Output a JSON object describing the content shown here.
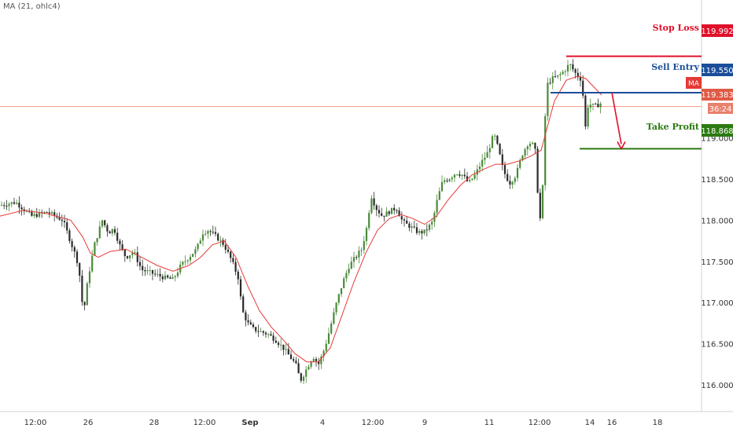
{
  "indicator": {
    "label": "MA (21, ohlc4)"
  },
  "price_tags": {
    "stop_loss": "119.992",
    "sell_entry": "119.550",
    "current": "119.383",
    "countdown": "36:24",
    "take_profit": "118.868",
    "ma_tag": "MA"
  },
  "colors": {
    "stop_loss": "#e0102a",
    "sell_entry": "#1a4e9a",
    "take_profit": "#2b7a12",
    "ma_line": "#e53935",
    "candle_up": "#4a8a3a",
    "candle_down": "#2a2a2a",
    "current_line": "#f4a58a"
  },
  "chart_data": {
    "type": "candlestick",
    "symbol_indicator": "MA (21, ohlc4)",
    "y_axis": {
      "range": [
        115.78,
        120.05
      ],
      "ticks": [
        "116.000",
        "116.500",
        "117.000",
        "117.500",
        "118.000",
        "118.500",
        "119.000"
      ]
    },
    "x_axis": {
      "ticks": [
        "12:00",
        "26",
        "28",
        "12:00",
        "Sep",
        "4",
        "12:00",
        "9",
        "11",
        "12:00",
        "14",
        "16",
        "18"
      ],
      "bold_ticks": [
        "Sep"
      ]
    },
    "price_path": [
      [
        0,
        118.18
      ],
      [
        20,
        118.22
      ],
      [
        40,
        118.05
      ],
      [
        60,
        118.1
      ],
      [
        80,
        118.0
      ],
      [
        95,
        117.6
      ],
      [
        100,
        117.45
      ],
      [
        106,
        116.85
      ],
      [
        112,
        117.3
      ],
      [
        120,
        117.7
      ],
      [
        130,
        118.0
      ],
      [
        138,
        117.85
      ],
      [
        145,
        117.9
      ],
      [
        152,
        117.7
      ],
      [
        160,
        117.55
      ],
      [
        170,
        117.62
      ],
      [
        180,
        117.4
      ],
      [
        195,
        117.35
      ],
      [
        210,
        117.3
      ],
      [
        220,
        117.28
      ],
      [
        230,
        117.45
      ],
      [
        240,
        117.55
      ],
      [
        250,
        117.65
      ],
      [
        258,
        117.85
      ],
      [
        265,
        117.88
      ],
      [
        275,
        117.8
      ],
      [
        285,
        117.7
      ],
      [
        295,
        117.5
      ],
      [
        303,
        117.3
      ],
      [
        308,
        116.9
      ],
      [
        315,
        116.75
      ],
      [
        322,
        116.68
      ],
      [
        330,
        116.65
      ],
      [
        340,
        116.62
      ],
      [
        350,
        116.55
      ],
      [
        360,
        116.45
      ],
      [
        368,
        116.35
      ],
      [
        376,
        116.25
      ],
      [
        382,
        116.05
      ],
      [
        390,
        116.2
      ],
      [
        398,
        116.35
      ],
      [
        405,
        116.25
      ],
      [
        413,
        116.45
      ],
      [
        420,
        116.7
      ],
      [
        428,
        117.0
      ],
      [
        436,
        117.25
      ],
      [
        444,
        117.45
      ],
      [
        452,
        117.55
      ],
      [
        460,
        117.65
      ],
      [
        466,
        117.9
      ],
      [
        472,
        118.3
      ],
      [
        478,
        118.15
      ],
      [
        486,
        118.05
      ],
      [
        494,
        118.1
      ],
      [
        504,
        118.15
      ],
      [
        512,
        117.98
      ],
      [
        522,
        117.92
      ],
      [
        532,
        117.85
      ],
      [
        540,
        117.86
      ],
      [
        550,
        117.98
      ],
      [
        556,
        118.25
      ],
      [
        563,
        118.48
      ],
      [
        570,
        118.5
      ],
      [
        580,
        118.58
      ],
      [
        588,
        118.55
      ],
      [
        596,
        118.45
      ],
      [
        604,
        118.55
      ],
      [
        612,
        118.7
      ],
      [
        620,
        118.82
      ],
      [
        628,
        119.05
      ],
      [
        634,
        118.85
      ],
      [
        640,
        118.6
      ],
      [
        648,
        118.45
      ],
      [
        656,
        118.55
      ],
      [
        664,
        118.8
      ],
      [
        672,
        118.95
      ],
      [
        680,
        118.9
      ],
      [
        684,
        118.3
      ],
      [
        688,
        117.9
      ],
      [
        690,
        118.4
      ],
      [
        692,
        119.1
      ],
      [
        696,
        119.65
      ],
      [
        702,
        119.72
      ],
      [
        710,
        119.75
      ],
      [
        718,
        119.82
      ],
      [
        724,
        119.9
      ],
      [
        732,
        119.78
      ],
      [
        740,
        119.7
      ],
      [
        744,
        119.1
      ],
      [
        748,
        119.42
      ],
      [
        756,
        119.38
      ],
      [
        764,
        119.42
      ]
    ],
    "ma_path": [
      [
        0,
        118.05
      ],
      [
        30,
        118.12
      ],
      [
        60,
        118.08
      ],
      [
        90,
        118.0
      ],
      [
        105,
        117.8
      ],
      [
        115,
        117.6
      ],
      [
        125,
        117.55
      ],
      [
        140,
        117.62
      ],
      [
        160,
        117.65
      ],
      [
        180,
        117.55
      ],
      [
        200,
        117.45
      ],
      [
        220,
        117.38
      ],
      [
        240,
        117.45
      ],
      [
        255,
        117.55
      ],
      [
        270,
        117.7
      ],
      [
        285,
        117.75
      ],
      [
        300,
        117.55
      ],
      [
        315,
        117.2
      ],
      [
        330,
        116.9
      ],
      [
        345,
        116.7
      ],
      [
        360,
        116.55
      ],
      [
        375,
        116.38
      ],
      [
        390,
        116.28
      ],
      [
        405,
        116.28
      ],
      [
        420,
        116.45
      ],
      [
        435,
        116.85
      ],
      [
        450,
        117.25
      ],
      [
        465,
        117.6
      ],
      [
        480,
        117.88
      ],
      [
        495,
        118.02
      ],
      [
        510,
        118.07
      ],
      [
        525,
        118.02
      ],
      [
        540,
        117.95
      ],
      [
        555,
        118.05
      ],
      [
        570,
        118.25
      ],
      [
        585,
        118.42
      ],
      [
        600,
        118.55
      ],
      [
        615,
        118.62
      ],
      [
        630,
        118.68
      ],
      [
        645,
        118.68
      ],
      [
        660,
        118.72
      ],
      [
        675,
        118.78
      ],
      [
        688,
        118.85
      ],
      [
        695,
        119.1
      ],
      [
        705,
        119.45
      ],
      [
        720,
        119.7
      ],
      [
        735,
        119.75
      ],
      [
        745,
        119.72
      ],
      [
        755,
        119.62
      ],
      [
        765,
        119.52
      ]
    ],
    "levels": [
      {
        "name": "Stop Loss",
        "value": 119.992,
        "x_start": 720
      },
      {
        "name": "Sell Entry",
        "value": 119.55,
        "x_start": 700
      },
      {
        "name": "Take Profit",
        "value": 118.868,
        "x_start": 737
      }
    ],
    "current_price": 119.383,
    "projection_arrow": {
      "from": [
        778,
        119.55
      ],
      "to": [
        790,
        118.868
      ]
    }
  },
  "annotations": {
    "stop_loss_label": "Stop Loss",
    "sell_entry_label": "Sell Entry",
    "take_profit_label": "Take Profit"
  }
}
